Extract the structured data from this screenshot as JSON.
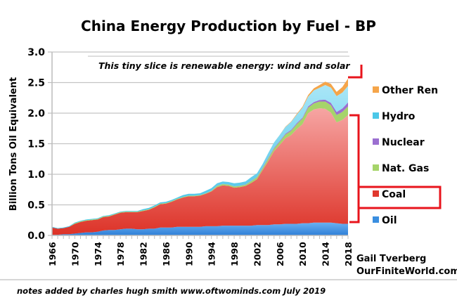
{
  "chart_data": {
    "type": "area",
    "stacked": true,
    "title": "China Energy Production by Fuel - BP",
    "xlabel": "",
    "ylabel": "Billion Tons Oil Equivalent",
    "ylim": [
      0,
      3.0
    ],
    "yticks": [
      "0.0",
      "0.5",
      "1.0",
      "1.5",
      "2.0",
      "2.5",
      "3.0"
    ],
    "xlim": [
      1966,
      2018
    ],
    "xtick_labels": [
      "1966",
      "1970",
      "1974",
      "1978",
      "1982",
      "1986",
      "1990",
      "1994",
      "1998",
      "2002",
      "2006",
      "2010",
      "2014",
      "2018"
    ],
    "grid": true,
    "legend_position": "right",
    "x": [
      1966,
      1967,
      1968,
      1969,
      1970,
      1971,
      1972,
      1973,
      1974,
      1975,
      1976,
      1977,
      1978,
      1979,
      1980,
      1981,
      1982,
      1983,
      1984,
      1985,
      1986,
      1987,
      1988,
      1989,
      1990,
      1991,
      1992,
      1993,
      1994,
      1995,
      1996,
      1997,
      1998,
      1999,
      2000,
      2001,
      2002,
      2003,
      2004,
      2005,
      2006,
      2007,
      2008,
      2009,
      2010,
      2011,
      2012,
      2013,
      2014,
      2015,
      2016,
      2017,
      2018
    ],
    "series": [
      {
        "name": "Oil",
        "color": "#3a8ee0",
        "values": [
          0.01,
          0.01,
          0.02,
          0.02,
          0.03,
          0.04,
          0.05,
          0.05,
          0.06,
          0.08,
          0.09,
          0.09,
          0.1,
          0.11,
          0.11,
          0.1,
          0.1,
          0.11,
          0.11,
          0.13,
          0.13,
          0.13,
          0.14,
          0.14,
          0.14,
          0.14,
          0.14,
          0.15,
          0.15,
          0.15,
          0.16,
          0.16,
          0.16,
          0.16,
          0.16,
          0.16,
          0.17,
          0.17,
          0.17,
          0.18,
          0.18,
          0.19,
          0.19,
          0.19,
          0.2,
          0.2,
          0.21,
          0.21,
          0.21,
          0.21,
          0.2,
          0.19,
          0.19
        ]
      },
      {
        "name": "Coal",
        "color": "#e0382e",
        "values": [
          0.12,
          0.1,
          0.1,
          0.12,
          0.16,
          0.18,
          0.19,
          0.2,
          0.2,
          0.22,
          0.22,
          0.25,
          0.27,
          0.27,
          0.27,
          0.28,
          0.3,
          0.31,
          0.35,
          0.38,
          0.39,
          0.42,
          0.45,
          0.48,
          0.5,
          0.5,
          0.51,
          0.53,
          0.57,
          0.64,
          0.66,
          0.65,
          0.62,
          0.63,
          0.65,
          0.7,
          0.75,
          0.9,
          1.05,
          1.2,
          1.3,
          1.4,
          1.45,
          1.55,
          1.62,
          1.8,
          1.85,
          1.87,
          1.86,
          1.8,
          1.65,
          1.7,
          1.78
        ]
      },
      {
        "name": "Nat. Gas",
        "color": "#a6d46a",
        "values": [
          0.0,
          0.0,
          0.0,
          0.0,
          0.01,
          0.01,
          0.01,
          0.01,
          0.01,
          0.01,
          0.01,
          0.01,
          0.01,
          0.01,
          0.01,
          0.01,
          0.01,
          0.01,
          0.01,
          0.01,
          0.01,
          0.01,
          0.01,
          0.01,
          0.01,
          0.01,
          0.01,
          0.01,
          0.01,
          0.02,
          0.02,
          0.02,
          0.02,
          0.02,
          0.02,
          0.03,
          0.03,
          0.03,
          0.04,
          0.04,
          0.05,
          0.06,
          0.07,
          0.08,
          0.09,
          0.09,
          0.1,
          0.11,
          0.12,
          0.12,
          0.12,
          0.13,
          0.14
        ]
      },
      {
        "name": "Nuclear",
        "color": "#9b6fd0",
        "values": [
          0,
          0,
          0,
          0,
          0,
          0,
          0,
          0,
          0,
          0,
          0,
          0,
          0,
          0,
          0,
          0,
          0,
          0,
          0,
          0,
          0,
          0,
          0,
          0,
          0,
          0,
          0,
          0,
          0.003,
          0.003,
          0.003,
          0.003,
          0.003,
          0.003,
          0.004,
          0.004,
          0.006,
          0.01,
          0.011,
          0.012,
          0.012,
          0.014,
          0.015,
          0.016,
          0.017,
          0.02,
          0.022,
          0.025,
          0.03,
          0.038,
          0.048,
          0.056,
          0.066
        ]
      },
      {
        "name": "Hydro",
        "color": "#4cc8e8",
        "values": [
          0.01,
          0.01,
          0.01,
          0.01,
          0.01,
          0.01,
          0.01,
          0.01,
          0.01,
          0.01,
          0.01,
          0.01,
          0.01,
          0.01,
          0.01,
          0.01,
          0.02,
          0.02,
          0.02,
          0.02,
          0.02,
          0.02,
          0.02,
          0.03,
          0.03,
          0.03,
          0.03,
          0.04,
          0.04,
          0.04,
          0.04,
          0.04,
          0.05,
          0.05,
          0.05,
          0.06,
          0.06,
          0.06,
          0.08,
          0.09,
          0.1,
          0.11,
          0.13,
          0.14,
          0.16,
          0.16,
          0.19,
          0.2,
          0.24,
          0.25,
          0.26,
          0.26,
          0.27
        ]
      },
      {
        "name": "Other Ren",
        "color": "#f5a54a",
        "values": [
          0,
          0,
          0,
          0,
          0,
          0,
          0,
          0,
          0,
          0,
          0,
          0,
          0,
          0,
          0,
          0,
          0,
          0,
          0,
          0,
          0,
          0,
          0,
          0,
          0,
          0,
          0,
          0,
          0,
          0,
          0,
          0,
          0,
          0,
          0,
          0,
          0,
          0,
          0,
          0,
          0.002,
          0.004,
          0.007,
          0.012,
          0.018,
          0.025,
          0.035,
          0.045,
          0.055,
          0.06,
          0.07,
          0.09,
          0.12
        ]
      }
    ],
    "legend_order": [
      "Other Ren",
      "Hydro",
      "Nuclear",
      "Nat. Gas",
      "Coal",
      "Oil"
    ],
    "annotations": {
      "renewable_note": "This tiny slice is renewable energy: wind and solar",
      "credit_line1": "Gail Tverberg",
      "credit_line2": "OurFiniteWorld.com"
    }
  },
  "footer": {
    "notes": "notes added by charles hugh smith   www.oftwominds.com  July 2019"
  },
  "highlight_color": "#e8141c"
}
